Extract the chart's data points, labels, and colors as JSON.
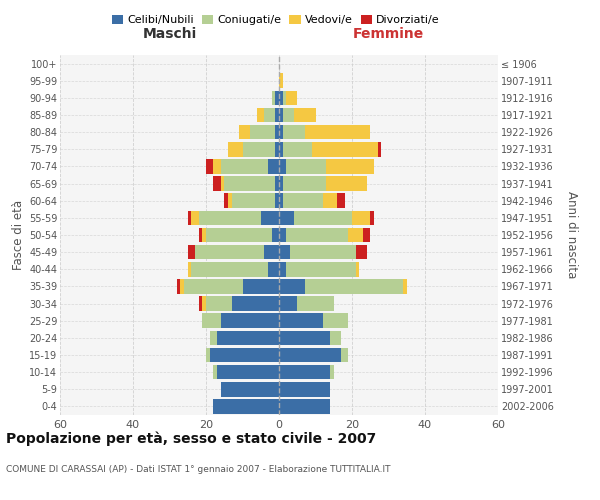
{
  "age_groups": [
    "0-4",
    "5-9",
    "10-14",
    "15-19",
    "20-24",
    "25-29",
    "30-34",
    "35-39",
    "40-44",
    "45-49",
    "50-54",
    "55-59",
    "60-64",
    "65-69",
    "70-74",
    "75-79",
    "80-84",
    "85-89",
    "90-94",
    "95-99",
    "100+"
  ],
  "birth_years": [
    "2002-2006",
    "1997-2001",
    "1992-1996",
    "1987-1991",
    "1982-1986",
    "1977-1981",
    "1972-1976",
    "1967-1971",
    "1962-1966",
    "1957-1961",
    "1952-1956",
    "1947-1951",
    "1942-1946",
    "1937-1941",
    "1932-1936",
    "1927-1931",
    "1922-1926",
    "1917-1921",
    "1912-1916",
    "1907-1911",
    "≤ 1906"
  ],
  "maschi": {
    "celibi": [
      18,
      16,
      17,
      19,
      17,
      16,
      13,
      10,
      3,
      4,
      2,
      5,
      1,
      1,
      3,
      1,
      1,
      1,
      1,
      0,
      0
    ],
    "coniugati": [
      0,
      0,
      1,
      1,
      2,
      5,
      7,
      16,
      21,
      19,
      18,
      17,
      12,
      14,
      13,
      9,
      7,
      3,
      1,
      0,
      0
    ],
    "vedovi": [
      0,
      0,
      0,
      0,
      0,
      0,
      1,
      1,
      1,
      0,
      1,
      2,
      1,
      1,
      2,
      4,
      3,
      2,
      0,
      0,
      0
    ],
    "divorziati": [
      0,
      0,
      0,
      0,
      0,
      0,
      1,
      1,
      0,
      2,
      1,
      1,
      1,
      2,
      2,
      0,
      0,
      0,
      0,
      0,
      0
    ]
  },
  "femmine": {
    "nubili": [
      14,
      14,
      14,
      17,
      14,
      12,
      5,
      7,
      2,
      3,
      2,
      4,
      1,
      1,
      2,
      1,
      1,
      1,
      1,
      0,
      0
    ],
    "coniugate": [
      0,
      0,
      1,
      2,
      3,
      7,
      10,
      27,
      19,
      18,
      17,
      16,
      11,
      12,
      11,
      8,
      6,
      3,
      1,
      0,
      0
    ],
    "vedove": [
      0,
      0,
      0,
      0,
      0,
      0,
      0,
      1,
      1,
      0,
      4,
      5,
      4,
      11,
      13,
      18,
      18,
      6,
      3,
      1,
      0
    ],
    "divorziate": [
      0,
      0,
      0,
      0,
      0,
      0,
      0,
      0,
      0,
      3,
      2,
      1,
      2,
      0,
      0,
      1,
      0,
      0,
      0,
      0,
      0
    ]
  },
  "colors": {
    "celibi_nubili": "#3B6EA6",
    "coniugati": "#B5CF94",
    "vedovi": "#F5C842",
    "divorziati": "#CC2020"
  },
  "xlim": 60,
  "title": "Popolazione per età, sesso e stato civile - 2007",
  "subtitle": "COMUNE DI CARASSAI (AP) - Dati ISTAT 1° gennaio 2007 - Elaborazione TUTTITALIA.IT",
  "label_maschi": "Maschi",
  "label_femmine": "Femmine",
  "ylabel_left": "Fasce di età",
  "ylabel_right": "Anni di nascita",
  "bg_color": "#f5f5f5",
  "grid_color": "#cccccc"
}
